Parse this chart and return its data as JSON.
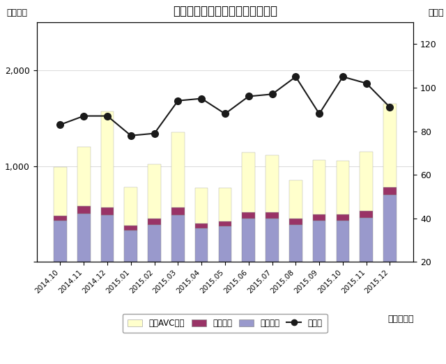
{
  "title": "民生用電子機器国内出荷金額推移",
  "ylabel_left": "（億円）",
  "ylabel_right": "（％）",
  "xlabel": "（年・月）",
  "categories": [
    "2014.10",
    "2014.11",
    "2014.12",
    "2015.01",
    "2015.02",
    "2015.03",
    "2015.04",
    "2015.05",
    "2015.06",
    "2015.07",
    "2015.08",
    "2015.09",
    "2015.10",
    "2015.11",
    "2015.12"
  ],
  "映像機器": [
    430,
    500,
    490,
    330,
    390,
    490,
    350,
    370,
    450,
    450,
    390,
    430,
    430,
    460,
    700
  ],
  "音声機器": [
    50,
    80,
    80,
    50,
    60,
    80,
    50,
    55,
    70,
    70,
    60,
    65,
    65,
    70,
    80
  ],
  "カーAVC機器": [
    510,
    620,
    1000,
    400,
    570,
    780,
    370,
    350,
    620,
    590,
    400,
    570,
    560,
    620,
    870
  ],
  "前年比": [
    83,
    87,
    87,
    78,
    79,
    94,
    95,
    88,
    96,
    97,
    105,
    88,
    105,
    102,
    91
  ],
  "bar_colors": {
    "映像機器": "#9999cc",
    "音声機器": "#993366",
    "カーAVC機器": "#ffffcc"
  },
  "line_color": "#1a1a1a",
  "ylim_left": [
    0,
    2500
  ],
  "ylim_right": [
    20,
    130
  ],
  "yticks_left": [
    0,
    1000,
    2000
  ],
  "yticks_right": [
    20,
    40,
    60,
    80,
    100,
    120
  ],
  "background_color": "#ffffff",
  "title_fontsize": 12,
  "legend_entries": [
    "カーAVC機器",
    "音声機器",
    "映像機器",
    "前年比"
  ]
}
